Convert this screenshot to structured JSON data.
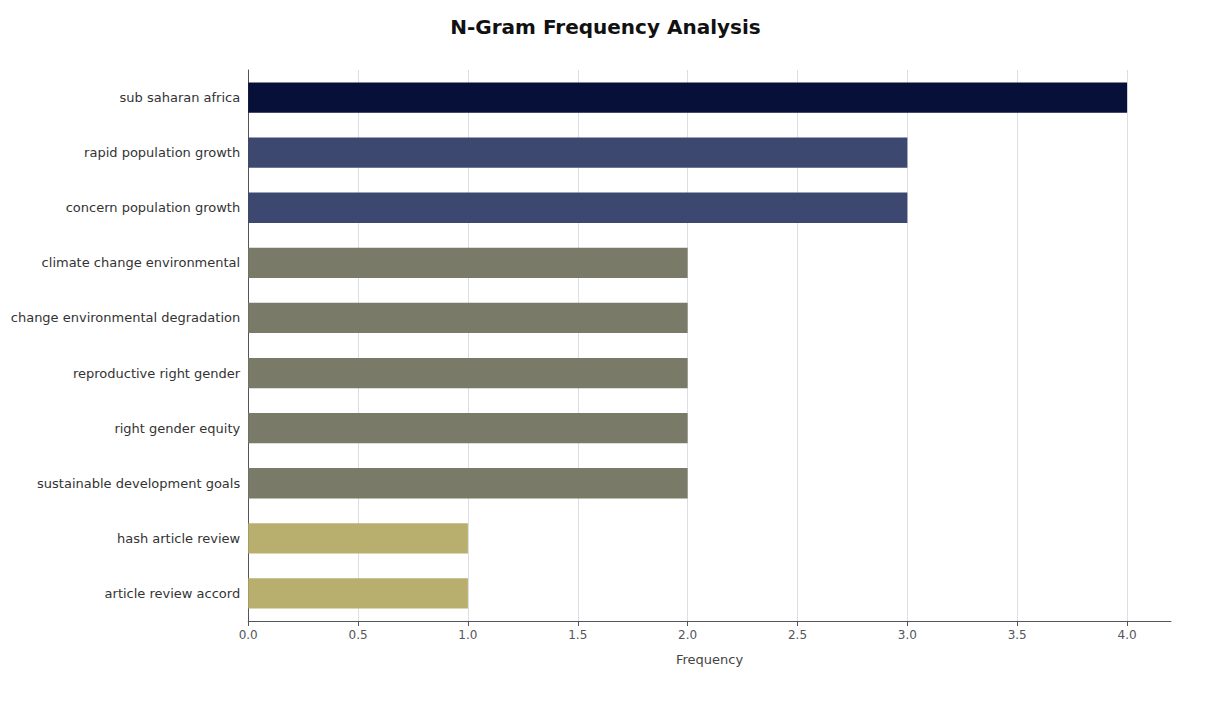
{
  "chart_data": {
    "type": "bar",
    "orientation": "horizontal",
    "title": "N-Gram Frequency Analysis",
    "xlabel": "Frequency",
    "categories": [
      "article review accord",
      "hash article review",
      "sustainable development goals",
      "right gender equity",
      "reproductive right gender",
      "change environmental degradation",
      "climate change environmental",
      "concern population growth",
      "rapid population growth",
      "sub saharan africa"
    ],
    "values": [
      1,
      1,
      2,
      2,
      2,
      2,
      2,
      3,
      3,
      4
    ],
    "colors": [
      "#b8af6e",
      "#b8af6e",
      "#7a7a68",
      "#7a7a68",
      "#7a7a68",
      "#7a7a68",
      "#7a7a68",
      "#3d4870",
      "#3d4870",
      "#071038"
    ],
    "xlim": [
      0,
      4.2
    ],
    "xticks": [
      {
        "value": 0,
        "label": "0.0"
      },
      0.5,
      {
        "value": 1,
        "label": "1.0"
      },
      1.5,
      {
        "value": 2,
        "label": "2.0"
      },
      2.5,
      {
        "value": 3,
        "label": "3.0"
      },
      3.5,
      {
        "value": 4,
        "label": "4.0"
      }
    ],
    "grid": true
  }
}
